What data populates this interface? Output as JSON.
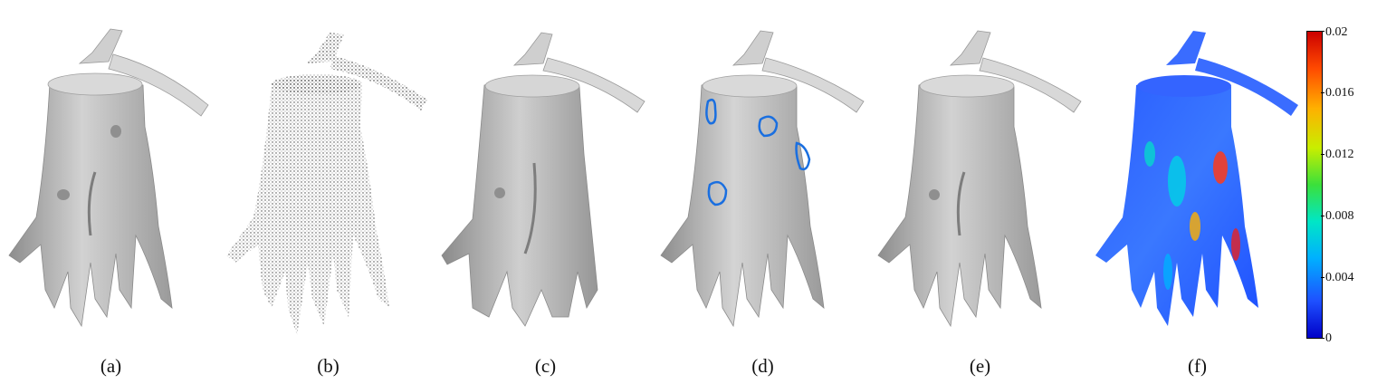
{
  "figure": {
    "panels": [
      {
        "caption": "(a)",
        "kind": "surface"
      },
      {
        "caption": "(b)",
        "kind": "point-cloud"
      },
      {
        "caption": "(c)",
        "kind": "surface-smooth"
      },
      {
        "caption": "(d)",
        "kind": "surface-marked"
      },
      {
        "caption": "(e)",
        "kind": "surface"
      },
      {
        "caption": "(f)",
        "kind": "error-map"
      }
    ],
    "colorbar": {
      "labels": [
        "0.02",
        "0.016",
        "0.012",
        "0.008",
        "0.004",
        "0"
      ],
      "colors": [
        "#cc0000",
        "#ff4a00",
        "#ffb000",
        "#c8ee00",
        "#3be03b",
        "#00e6c6",
        "#00b0ff",
        "#1e50ff",
        "#0000c8"
      ]
    },
    "highlight_color": "#1a6fe0",
    "surface_color": "#bdbdbd"
  }
}
